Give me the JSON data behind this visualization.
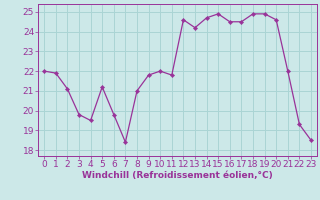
{
  "x": [
    0,
    1,
    2,
    3,
    4,
    5,
    6,
    7,
    8,
    9,
    10,
    11,
    12,
    13,
    14,
    15,
    16,
    17,
    18,
    19,
    20,
    21,
    22,
    23
  ],
  "y": [
    22.0,
    21.9,
    21.1,
    19.8,
    19.5,
    21.2,
    19.8,
    18.4,
    21.0,
    21.8,
    22.0,
    21.8,
    24.6,
    24.2,
    24.7,
    24.9,
    24.5,
    24.5,
    24.9,
    24.9,
    24.6,
    22.0,
    19.3,
    18.5
  ],
  "line_color": "#993399",
  "marker_color": "#993399",
  "bg_color": "#cce8e8",
  "grid_color": "#aad4d4",
  "xlabel": "Windchill (Refroidissement éolien,°C)",
  "ylabel_ticks": [
    18,
    19,
    20,
    21,
    22,
    23,
    24,
    25
  ],
  "xlim": [
    -0.5,
    23.5
  ],
  "ylim": [
    17.7,
    25.4
  ],
  "tick_color": "#993399",
  "label_color": "#993399",
  "font_size_xlabel": 6.5,
  "font_size_tick": 6.5
}
